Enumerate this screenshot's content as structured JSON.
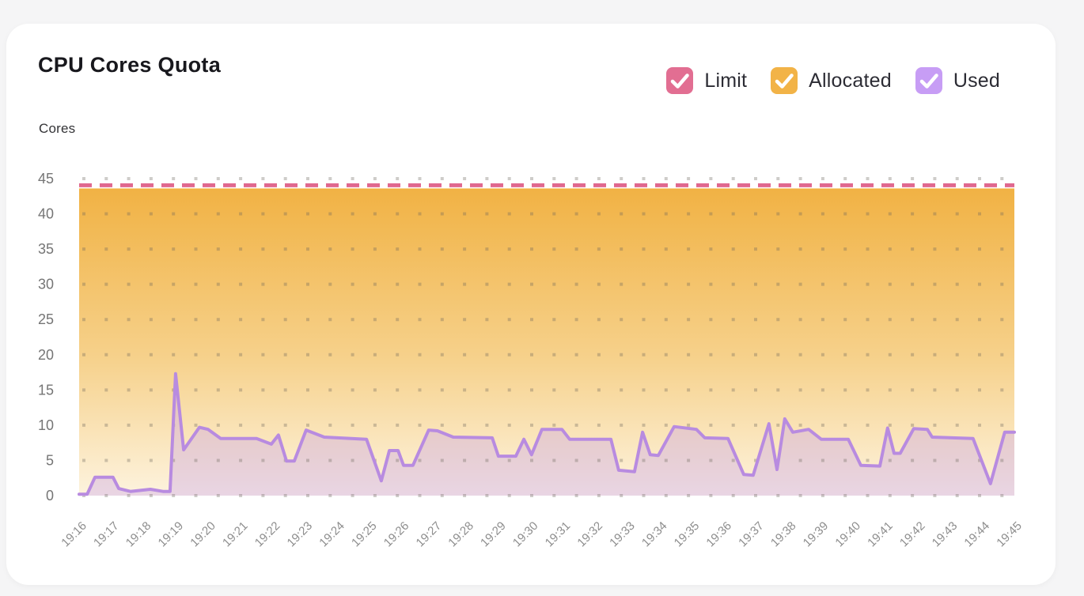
{
  "page": {
    "background": "#f5f5f6",
    "card_background": "#ffffff"
  },
  "header": {
    "title": "CPU Cores Quota",
    "y_axis_unit": "Cores"
  },
  "legend": [
    {
      "id": "limit",
      "label": "Limit",
      "color": "#e26e92",
      "checked": true
    },
    {
      "id": "allocated",
      "label": "Allocated",
      "color": "#f2b347",
      "checked": true
    },
    {
      "id": "used",
      "label": "Used",
      "color": "#c79df5",
      "checked": true
    }
  ],
  "chart_data": {
    "type": "area",
    "title": "CPU Cores Quota",
    "xlabel": "",
    "ylabel": "Cores",
    "ylim": [
      0,
      45
    ],
    "y_ticks": [
      0,
      5,
      10,
      15,
      20,
      25,
      30,
      35,
      40,
      45
    ],
    "grid": "dotted",
    "legend_position": "top-right",
    "x_labels": [
      "19:16",
      "19:17",
      "19:18",
      "19:19",
      "19:20",
      "19:21",
      "19:22",
      "19:23",
      "19:24",
      "19:25",
      "19:26",
      "19:27",
      "19:28",
      "19:29",
      "19:30",
      "19:31",
      "19:32",
      "19:33",
      "19:34",
      "19:35",
      "19:36",
      "19:37",
      "19:38",
      "19:39",
      "19:40",
      "19:41",
      "19:42",
      "19:43",
      "19:44",
      "19:45"
    ],
    "series": [
      {
        "name": "Limit",
        "type": "dashed-line",
        "value": 44,
        "color": "#e0688f"
      },
      {
        "name": "Allocated",
        "type": "area",
        "value": 44,
        "color_top": "#f1b244",
        "color_mid": "#f6d18b",
        "color_bottom": "#fdf3de"
      },
      {
        "name": "Used",
        "type": "line-area",
        "line_color": "#b88be0",
        "fill_color": "rgba(196,158,239,0.35)",
        "points_unit": "minutes after 19:16 -> cores",
        "points": [
          [
            0.0,
            0.2
          ],
          [
            0.25,
            0.2
          ],
          [
            0.49,
            2.6
          ],
          [
            1.05,
            2.6
          ],
          [
            1.23,
            1.0
          ],
          [
            1.59,
            0.6
          ],
          [
            2.21,
            0.9
          ],
          [
            2.6,
            0.6
          ],
          [
            2.82,
            0.6
          ],
          [
            2.99,
            17.3
          ],
          [
            3.24,
            6.5
          ],
          [
            3.73,
            9.7
          ],
          [
            4.0,
            9.4
          ],
          [
            4.39,
            8.1
          ],
          [
            5.5,
            8.1
          ],
          [
            5.96,
            7.3
          ],
          [
            6.18,
            8.6
          ],
          [
            6.43,
            4.9
          ],
          [
            6.67,
            4.9
          ],
          [
            7.04,
            9.3
          ],
          [
            7.6,
            8.3
          ],
          [
            8.91,
            8.0
          ],
          [
            9.37,
            2.1
          ],
          [
            9.62,
            6.4
          ],
          [
            9.89,
            6.4
          ],
          [
            10.06,
            4.3
          ],
          [
            10.35,
            4.3
          ],
          [
            10.84,
            9.3
          ],
          [
            11.11,
            9.2
          ],
          [
            11.6,
            8.3
          ],
          [
            12.81,
            8.2
          ],
          [
            13.0,
            5.6
          ],
          [
            13.54,
            5.6
          ],
          [
            13.79,
            8.0
          ],
          [
            14.03,
            5.8
          ],
          [
            14.35,
            9.4
          ],
          [
            14.97,
            9.4
          ],
          [
            15.21,
            8.0
          ],
          [
            16.49,
            8.0
          ],
          [
            16.73,
            3.6
          ],
          [
            17.22,
            3.4
          ],
          [
            17.47,
            9.0
          ],
          [
            17.71,
            5.8
          ],
          [
            17.96,
            5.7
          ],
          [
            18.45,
            9.8
          ],
          [
            19.14,
            9.4
          ],
          [
            19.4,
            8.2
          ],
          [
            20.12,
            8.1
          ],
          [
            20.61,
            3.0
          ],
          [
            20.9,
            2.9
          ],
          [
            21.39,
            10.2
          ],
          [
            21.64,
            3.7
          ],
          [
            21.88,
            10.9
          ],
          [
            22.13,
            9.0
          ],
          [
            22.62,
            9.4
          ],
          [
            23.01,
            8.0
          ],
          [
            23.85,
            8.0
          ],
          [
            24.24,
            4.3
          ],
          [
            24.83,
            4.2
          ],
          [
            25.07,
            9.6
          ],
          [
            25.27,
            6.0
          ],
          [
            25.46,
            6.0
          ],
          [
            25.88,
            9.5
          ],
          [
            26.3,
            9.4
          ],
          [
            26.45,
            8.3
          ],
          [
            27.72,
            8.1
          ],
          [
            28.26,
            1.7
          ],
          [
            28.7,
            9.0
          ],
          [
            29.0,
            9.0
          ]
        ]
      }
    ]
  }
}
